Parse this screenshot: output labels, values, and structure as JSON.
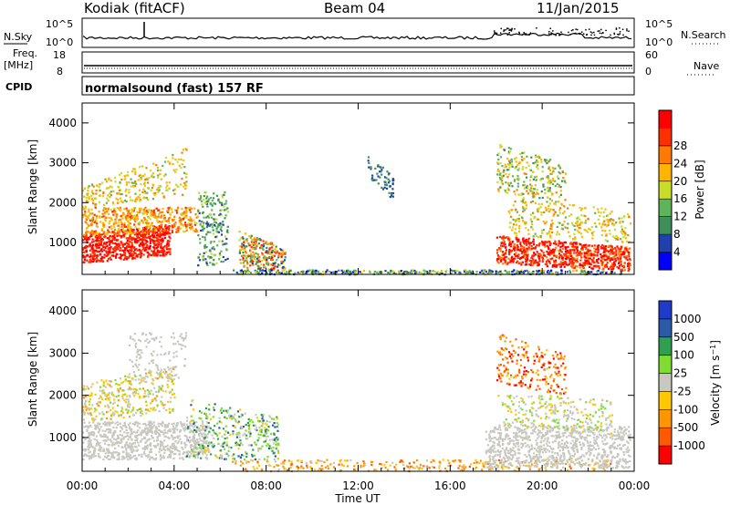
{
  "header": {
    "station": "Kodiak (fitACF)",
    "beam": "Beam 04",
    "date": "11/Jan/2015"
  },
  "strips": {
    "nsky_label": "N.Sky",
    "nsky_ticks": [
      "10^5",
      "10^0"
    ],
    "nsearch_label": "N.Search",
    "nsearch_ticks": [
      "10^5",
      "10^0"
    ],
    "freq_label_top": "Freq.",
    "freq_label_unit": "[MHz]",
    "freq_ticks": [
      "18",
      "8"
    ],
    "nave_label": "Nave",
    "nave_ticks": [
      "60",
      "0"
    ],
    "cpid_label": "CPID",
    "cpid_text": "normalsound (fast) 157 RF"
  },
  "colors": {
    "power_scale": [
      "#0000ff",
      "#2040b0",
      "#3f8f5a",
      "#5fb35a",
      "#c8dc28",
      "#ffb400",
      "#ff7a00",
      "#ff3000",
      "#ff0000"
    ],
    "velocity_scale": [
      "#ff0000",
      "#ff5a00",
      "#ff9600",
      "#ffc800",
      "#c8c8c0",
      "#80dc30",
      "#30a050",
      "#2a5aa8",
      "#1e3cc8"
    ]
  },
  "chart_data": [
    {
      "type": "heatmap",
      "panel": "power",
      "ylabel": "Slant Range [km]",
      "yticks": [
        "1000",
        "2000",
        "3000",
        "4000"
      ],
      "ylim": [
        200,
        4500
      ],
      "xlim": [
        0,
        24
      ],
      "colorbar_label": "Power [dB]",
      "colorbar_ticks": [
        "4",
        "8",
        "12",
        "16",
        "20",
        "24",
        "28"
      ],
      "colorbar_range": [
        0,
        32
      ]
    },
    {
      "type": "heatmap",
      "panel": "velocity",
      "ylabel": "Slant Range [km]",
      "yticks": [
        "1000",
        "2000",
        "3000",
        "4000"
      ],
      "ylim": [
        200,
        4500
      ],
      "xlim": [
        0,
        24
      ],
      "colorbar_label": "Velocity [m s^-1]",
      "colorbar_ticks": [
        "-1000",
        "-500",
        "-100",
        "-25",
        "25",
        "100",
        "500",
        "1000"
      ],
      "xticks": [
        "00:00",
        "04:00",
        "08:00",
        "12:00",
        "16:00",
        "20:00",
        "00:00"
      ],
      "xlabel": "Time UT"
    }
  ]
}
